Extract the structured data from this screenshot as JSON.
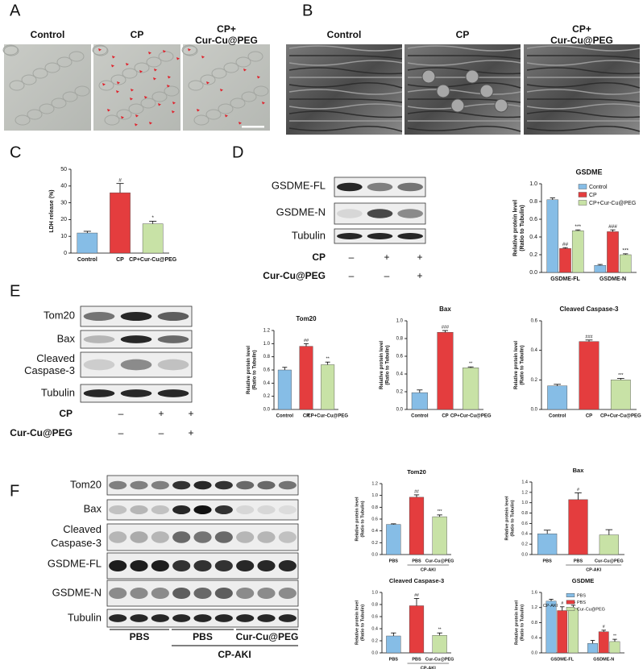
{
  "panels": {
    "A": {
      "letter": "A",
      "headers": [
        [
          "Control"
        ],
        [
          "CP"
        ],
        [
          "CP+",
          "Cur-Cu@PEG"
        ]
      ]
    },
    "B": {
      "letter": "B",
      "headers": [
        [
          "Control"
        ],
        [
          "CP"
        ],
        [
          "CP+",
          "Cur-Cu@PEG"
        ]
      ]
    },
    "C": {
      "letter": "C"
    },
    "D": {
      "letter": "D",
      "blot_rows": [
        [
          "GSDME-FL"
        ],
        [
          "GSDME-N"
        ],
        [
          "Tubulin"
        ]
      ],
      "conditions": [
        {
          "label": "CP",
          "signs": [
            "–",
            "+",
            "+"
          ]
        },
        {
          "label": "Cur-Cu@PEG",
          "signs": [
            "–",
            "–",
            "+"
          ]
        }
      ]
    },
    "E": {
      "letter": "E",
      "blot_rows": [
        [
          "Tom20"
        ],
        [
          "Bax"
        ],
        [
          "Cleaved",
          "Caspase-3"
        ],
        [
          "Tubulin"
        ]
      ],
      "conditions": [
        {
          "label": "CP",
          "signs": [
            "–",
            "+",
            "+"
          ]
        },
        {
          "label": "Cur-Cu@PEG",
          "signs": [
            "–",
            "–",
            "+"
          ]
        }
      ]
    },
    "F": {
      "letter": "F",
      "blot_rows": [
        [
          "Tom20"
        ],
        [
          "Bax"
        ],
        [
          "Cleaved",
          "Caspase-3"
        ],
        [
          "GSDME-FL"
        ],
        [
          "GSDME-N"
        ],
        [
          "Tubulin"
        ]
      ],
      "lane_groups": [
        "PBS",
        "PBS",
        "Cur-Cu@PEG"
      ],
      "group_label": "CP-AKI"
    }
  },
  "chart_data": [
    {
      "type": "bar",
      "ylabel": [
        "LDH release (%)"
      ],
      "categories": [
        "Control",
        "CP",
        "CP+Cur-Cu@PEG"
      ],
      "values": [
        12,
        36,
        17.5
      ],
      "errors": [
        1,
        5.5,
        1.5
      ],
      "value_annotations": [
        null,
        "#",
        "*"
      ],
      "colors": [
        "#86bde6",
        "#e43d3e",
        "#c8e2a6"
      ],
      "ylim": [
        0,
        50
      ],
      "yticks": [
        0,
        10,
        20,
        30,
        40,
        50
      ]
    },
    {
      "type": "grouped_bar",
      "title": "GSDME",
      "ylabel": [
        "Relative protein level",
        "(Ratio to Tubulin)"
      ],
      "categories": [
        "GSDME-FL",
        "GSDME-N"
      ],
      "legend": "upper right",
      "series": [
        {
          "name": "Control",
          "color": "#86bde6",
          "values": [
            0.82,
            0.08
          ],
          "errors": [
            0.02,
            0.01
          ],
          "value_annotations": [
            null,
            null
          ]
        },
        {
          "name": "CP",
          "color": "#e43d3e",
          "values": [
            0.27,
            0.46
          ],
          "errors": [
            0.01,
            0.02
          ],
          "value_annotations": [
            "##",
            "###"
          ]
        },
        {
          "name": "CP+Cur-Cu@PEG",
          "color": "#c8e2a6",
          "values": [
            0.47,
            0.2
          ],
          "errors": [
            0.01,
            0.01
          ],
          "value_annotations": [
            "***",
            "***"
          ]
        }
      ],
      "ylim": [
        0,
        1
      ],
      "yticks": [
        {
          "value": 0,
          "label": "0.0"
        },
        0.2,
        0.4,
        0.6,
        0.8,
        {
          "value": 1,
          "label": "1.0"
        }
      ]
    },
    {
      "type": "bar",
      "title": "Tom20",
      "ylabel": [
        "Relative protein level",
        "(Ratio to Tubulin)"
      ],
      "categories": [
        "Control",
        "CP",
        "CP+Cur-Cu@PEG"
      ],
      "values": [
        0.6,
        0.96,
        0.68
      ],
      "errors": [
        0.04,
        0.04,
        0.04
      ],
      "value_annotations": [
        null,
        "##",
        "**"
      ],
      "colors": [
        "#86bde6",
        "#e43d3e",
        "#c8e2a6"
      ],
      "ylim": [
        0,
        1.2
      ],
      "yticks": [
        {
          "value": 0,
          "label": "0.0"
        },
        0.2,
        0.4,
        0.6,
        0.8,
        {
          "value": 1,
          "label": "1.0"
        },
        1.2
      ]
    },
    {
      "type": "bar",
      "title": "Bax",
      "ylabel": [
        "Relative protein level",
        "(Ratio to Tubulin)"
      ],
      "categories": [
        "Control",
        "CP",
        "CP+Cur-Cu@PEG"
      ],
      "values": [
        0.19,
        0.87,
        0.47
      ],
      "errors": [
        0.03,
        0.02,
        0.01
      ],
      "value_annotations": [
        null,
        "###",
        "**"
      ],
      "colors": [
        "#86bde6",
        "#e43d3e",
        "#c8e2a6"
      ],
      "ylim": [
        0,
        1
      ],
      "yticks": [
        {
          "value": 0,
          "label": "0.0"
        },
        0.2,
        0.4,
        0.6,
        0.8,
        {
          "value": 1,
          "label": "1.0"
        }
      ]
    },
    {
      "type": "bar",
      "title": "Cleaved Caspase-3",
      "ylabel": [
        "Relative protein level",
        "(Ratio to Tubulin)"
      ],
      "categories": [
        "Control",
        "CP",
        "CP+Cur-Cu@PEG"
      ],
      "values": [
        0.16,
        0.46,
        0.2
      ],
      "errors": [
        0.01,
        0.01,
        0.01
      ],
      "value_annotations": [
        null,
        "###",
        "***"
      ],
      "colors": [
        "#86bde6",
        "#e43d3e",
        "#c8e2a6"
      ],
      "ylim": [
        0,
        0.6
      ],
      "yticks": [
        {
          "value": 0,
          "label": "0.0"
        },
        0.2,
        0.4,
        0.6
      ]
    },
    {
      "type": "bar",
      "title": "Tom20",
      "ylabel": [
        "Relative protein level",
        "(Ratio to Tubulin)"
      ],
      "categories": [
        "PBS",
        "PBS",
        "Cur-Cu@PEG"
      ],
      "group_label": "CP-AKI",
      "values": [
        0.51,
        0.97,
        0.64
      ],
      "errors": [
        0.01,
        0.04,
        0.03
      ],
      "value_annotations": [
        null,
        "##",
        "***"
      ],
      "colors": [
        "#86bde6",
        "#e43d3e",
        "#c8e2a6"
      ],
      "ylim": [
        0,
        1.2
      ],
      "yticks": [
        {
          "value": 0,
          "label": "0.0"
        },
        0.2,
        0.4,
        0.6,
        0.8,
        {
          "value": 1,
          "label": "1.0"
        },
        1.2
      ]
    },
    {
      "type": "bar",
      "title": "Bax",
      "ylabel": [
        "Relative protein level",
        "(Ratio to Tubulin)"
      ],
      "categories": [
        "PBS",
        "PBS",
        "Cur-Cu@PEG"
      ],
      "group_label": "CP-AKI",
      "values": [
        0.4,
        1.06,
        0.38
      ],
      "errors": [
        0.07,
        0.13,
        0.1
      ],
      "value_annotations": [
        null,
        "#",
        null
      ],
      "colors": [
        "#86bde6",
        "#e43d3e",
        "#c8e2a6"
      ],
      "ylim": [
        0,
        1.4
      ],
      "yticks": [
        {
          "value": 0,
          "label": "0.0"
        },
        0.2,
        0.4,
        0.6,
        0.8,
        {
          "value": 1,
          "label": "1.0"
        },
        1.2,
        1.4
      ]
    },
    {
      "type": "bar",
      "title": "Cleaved Caspase-3",
      "ylabel": [
        "Relative protein level",
        "(Ratio to Tubulin)"
      ],
      "categories": [
        "PBS",
        "PBS",
        "Cur-Cu@PEG"
      ],
      "group_label": "CP-AKI",
      "values": [
        0.28,
        0.78,
        0.29
      ],
      "errors": [
        0.05,
        0.12,
        0.04
      ],
      "value_annotations": [
        null,
        "##",
        "**"
      ],
      "colors": [
        "#86bde6",
        "#e43d3e",
        "#c8e2a6"
      ],
      "ylim": [
        0,
        1
      ],
      "yticks": [
        {
          "value": 0,
          "label": "0.0"
        },
        0.2,
        0.4,
        0.6,
        0.8,
        {
          "value": 1,
          "label": "1.0"
        }
      ]
    },
    {
      "type": "grouped_bar",
      "title": "GSDME",
      "ylabel": [
        "Relative protein level",
        "(Ratio to Tubulin)"
      ],
      "categories": [
        "GSDME-FL",
        "GSDME-N"
      ],
      "legend": "upper right",
      "group_label": "CP-AKI",
      "series": [
        {
          "name": "PBS",
          "color": "#86bde6",
          "values": [
            1.37,
            0.25
          ],
          "errors": [
            0.05,
            0.08
          ],
          "value_annotations": [
            null,
            null
          ]
        },
        {
          "name": "PBS",
          "color": "#e43d3e",
          "values": [
            1.12,
            0.56
          ],
          "errors": [
            0.1,
            0.04
          ],
          "value_annotations": [
            "#",
            "#"
          ]
        },
        {
          "name": "Cur-Cu@PEG",
          "color": "#c8e2a6",
          "values": [
            1.18,
            0.3
          ],
          "errors": [
            0.08,
            0.06
          ],
          "value_annotations": [
            "ns",
            "**"
          ]
        }
      ],
      "ylim": [
        0,
        1.6
      ],
      "yticks": [
        {
          "value": 0,
          "label": "0.0"
        },
        0.4,
        0.8,
        1.2,
        1.6
      ]
    }
  ]
}
